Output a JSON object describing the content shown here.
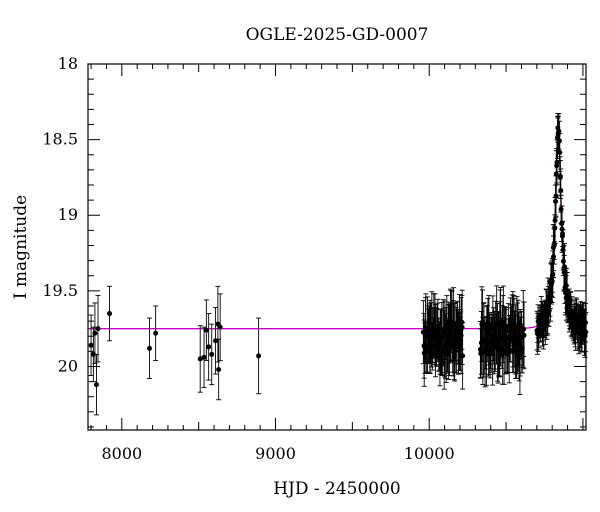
{
  "chart_data": {
    "type": "scatter",
    "title": "OGLE-2025-GD-0007",
    "xlabel": "HJD - 2450000",
    "ylabel": "I magnitude",
    "xlim": [
      7780,
      11020
    ],
    "ylim": [
      20.42,
      18.0
    ],
    "y_inverted": true,
    "xticks": [
      8000,
      9000,
      10000
    ],
    "yticks": [
      18,
      18.5,
      19,
      19.5,
      20
    ],
    "ytick_labels": [
      "18",
      "18.5",
      "19",
      "19.5",
      "20"
    ],
    "grid": false,
    "series": [
      {
        "kind": "observations",
        "color": "#000000",
        "points": [
          {
            "x": 7800,
            "y": 19.86,
            "err": 0.2
          },
          {
            "x": 7815,
            "y": 19.92,
            "err": 0.18
          },
          {
            "x": 7825,
            "y": 19.78,
            "err": 0.2
          },
          {
            "x": 7835,
            "y": 20.12,
            "err": 0.2
          },
          {
            "x": 7845,
            "y": 19.75,
            "err": 0.22
          },
          {
            "x": 7920,
            "y": 19.65,
            "err": 0.18
          },
          {
            "x": 8180,
            "y": 19.88,
            "err": 0.2
          },
          {
            "x": 8220,
            "y": 19.78,
            "err": 0.18
          },
          {
            "x": 8510,
            "y": 19.95,
            "err": 0.22
          },
          {
            "x": 8535,
            "y": 19.94,
            "err": 0.2
          },
          {
            "x": 8550,
            "y": 19.76,
            "err": 0.2
          },
          {
            "x": 8565,
            "y": 19.87,
            "err": 0.22
          },
          {
            "x": 8585,
            "y": 19.92,
            "err": 0.2
          },
          {
            "x": 8610,
            "y": 19.83,
            "err": 0.22
          },
          {
            "x": 8625,
            "y": 19.72,
            "err": 0.25
          },
          {
            "x": 8640,
            "y": 19.74,
            "err": 0.22
          },
          {
            "x": 8630,
            "y": 20.02,
            "err": 0.2
          },
          {
            "x": 8890,
            "y": 19.93,
            "err": 0.25
          }
        ],
        "dense_ranges": [
          {
            "x_start": 9960,
            "x_end": 10220,
            "count": 75,
            "y_center": 19.82,
            "y_scatter": 0.12,
            "err": 0.2
          },
          {
            "x_start": 10330,
            "x_end": 10620,
            "count": 80,
            "y_center": 19.82,
            "y_scatter": 0.12,
            "err": 0.2
          },
          {
            "x_start": 10700,
            "x_end": 11020,
            "count": 130,
            "follows_model": true,
            "y_scatter": 0.06,
            "err": 0.12
          }
        ]
      },
      {
        "kind": "model",
        "color": "#cc00cc",
        "baseline": 19.75,
        "peak_magnitude": 18.45,
        "t0": 10840,
        "tE": 45
      }
    ]
  }
}
